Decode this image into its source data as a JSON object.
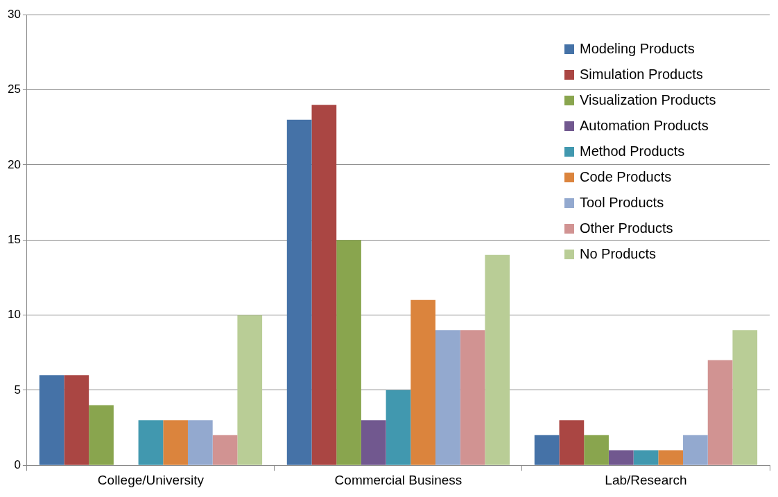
{
  "chart_data": {
    "type": "bar",
    "categories": [
      "College/University",
      "Commercial Business",
      "Lab/Research"
    ],
    "series": [
      {
        "name": "Modeling Products",
        "color": "#4572a7",
        "values": [
          6,
          23,
          2
        ]
      },
      {
        "name": "Simulation Products",
        "color": "#aa4643",
        "values": [
          6,
          24,
          3
        ]
      },
      {
        "name": "Visualization Products",
        "color": "#89a54e",
        "values": [
          4,
          15,
          2
        ]
      },
      {
        "name": "Automation Products",
        "color": "#71588f",
        "values": [
          0,
          3,
          1
        ]
      },
      {
        "name": "Method Products",
        "color": "#4198af",
        "values": [
          3,
          5,
          1
        ]
      },
      {
        "name": "Code Products",
        "color": "#db843d",
        "values": [
          3,
          11,
          1
        ]
      },
      {
        "name": "Tool Products",
        "color": "#93a9cf",
        "values": [
          3,
          9,
          2
        ]
      },
      {
        "name": "Other Products",
        "color": "#d19392",
        "values": [
          2,
          9,
          7
        ]
      },
      {
        "name": "No Products",
        "color": "#b9cd96",
        "values": [
          10,
          14,
          9
        ]
      }
    ],
    "ylim": [
      0,
      30
    ],
    "yticks": [
      0,
      5,
      10,
      15,
      20,
      25,
      30
    ],
    "grid": "y",
    "legend": "top right"
  }
}
